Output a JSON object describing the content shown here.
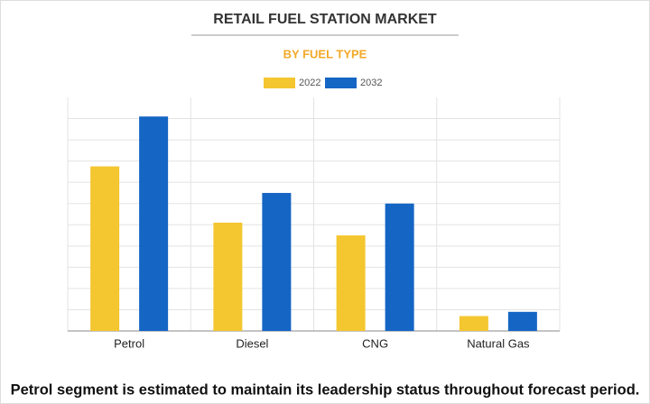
{
  "chart_data": {
    "type": "bar",
    "title": "RETAIL FUEL STATION MARKET",
    "subtitle": "BY FUEL TYPE",
    "categories": [
      "Petrol",
      "Diesel",
      "CNG",
      "Natural Gas"
    ],
    "series": [
      {
        "name": "2022",
        "color": "#f4c630",
        "values": [
          7.75,
          5.1,
          4.5,
          0.7
        ]
      },
      {
        "name": "2032",
        "color": "#1565c4",
        "values": [
          10.1,
          6.5,
          6.0,
          0.9
        ]
      }
    ],
    "ylim": [
      0,
      11
    ],
    "yticks": [
      0,
      1,
      2,
      3,
      4,
      5,
      6,
      7,
      8,
      9,
      10
    ],
    "grid": true,
    "legend": "top",
    "footnote": "Petrol segment is estimated to maintain its leadership status throughout forecast period."
  }
}
